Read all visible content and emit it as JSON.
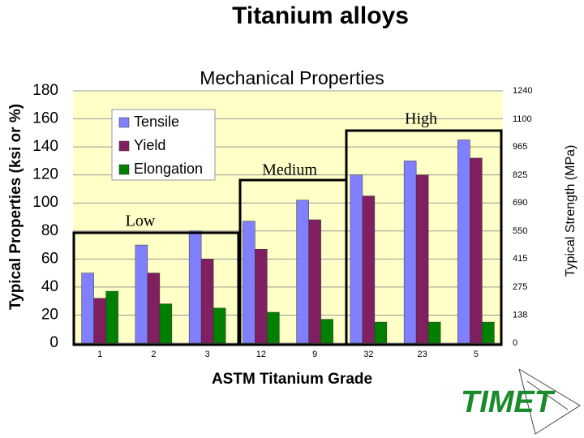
{
  "chart_data": {
    "type": "bar",
    "title": "Titanium alloys",
    "subtitle": "Mechanical Properties",
    "y_label": "Typical Properties (ksi or %)",
    "y2_label": "Typical Strength (MPa)",
    "x_label": "ASTM Titanium Grade",
    "categories": [
      "1",
      "2",
      "3",
      "12",
      "9",
      "32",
      "23",
      "5"
    ],
    "series": [
      {
        "name": "Tensile",
        "color": "#8080ff",
        "values": [
          50,
          70,
          80,
          87,
          102,
          120,
          130,
          145
        ]
      },
      {
        "name": "Yield",
        "color": "#802060",
        "values": [
          32,
          50,
          60,
          67,
          88,
          105,
          120,
          132
        ]
      },
      {
        "name": "Elongation",
        "color": "#008000",
        "values": [
          37,
          28,
          25,
          22,
          17,
          15,
          15,
          15
        ]
      }
    ],
    "ylim": [
      0,
      180
    ],
    "yticks": [
      0,
      20,
      40,
      60,
      80,
      100,
      120,
      140,
      160,
      180
    ],
    "y2lim": [
      0,
      1240
    ],
    "y2ticks": [
      0,
      138,
      275,
      415,
      550,
      690,
      825,
      965,
      1100,
      1240
    ],
    "grid": true,
    "annotations": [
      "Low",
      "Medium",
      "High"
    ]
  },
  "logo": "TIMET"
}
